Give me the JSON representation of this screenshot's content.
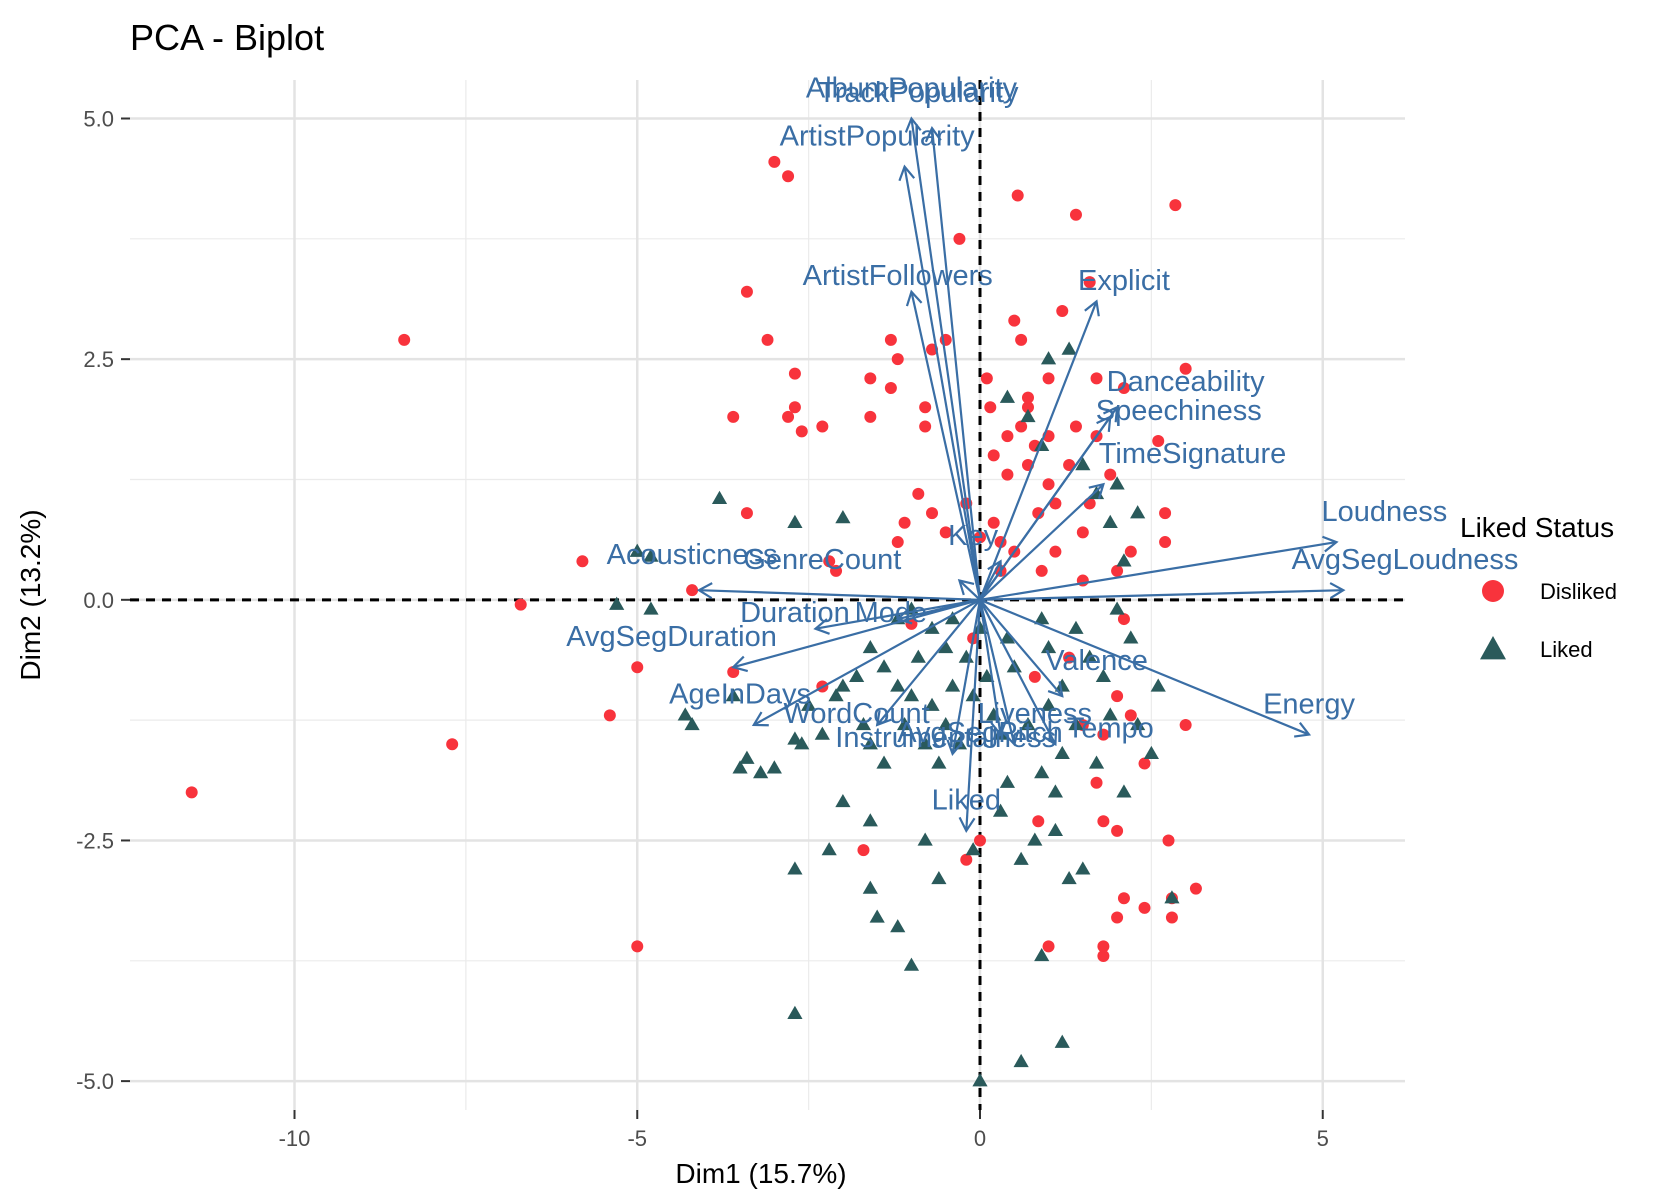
{
  "chart_data": {
    "type": "scatter",
    "title": "PCA - Biplot",
    "xlabel": "Dim1 (15.7%)",
    "ylabel": "Dim2 (13.2%)",
    "xlim": [
      -12.4,
      6.2
    ],
    "ylim": [
      -5.3,
      5.4
    ],
    "x_ticks": [
      -10,
      -5,
      0,
      5
    ],
    "x_tick_labels": [
      "-10",
      "-5",
      "0",
      "5"
    ],
    "y_ticks": [
      -5,
      -2.5,
      0,
      2.5,
      5
    ],
    "y_tick_labels": [
      "-5.0",
      "-2.5",
      "0.0",
      "2.5",
      "5.0"
    ],
    "grid": true,
    "legend": {
      "title": "Liked Status",
      "position": "right",
      "entries": [
        {
          "name": "Disliked",
          "shape": "circle",
          "color": "#F8333C"
        },
        {
          "name": "Liked",
          "shape": "triangle",
          "color": "#2A5A5B"
        }
      ]
    },
    "arrow_color": "#3A6EA5",
    "series": [
      {
        "name": "Disliked",
        "points": [
          [
            -11.5,
            -2.0
          ],
          [
            -8.4,
            2.7
          ],
          [
            -7.7,
            -1.5
          ],
          [
            -6.7,
            -0.05
          ],
          [
            -5.8,
            0.4
          ],
          [
            -5.0,
            -0.7
          ],
          [
            -5.0,
            -3.6
          ],
          [
            -5.4,
            -1.2
          ],
          [
            -4.2,
            0.1
          ],
          [
            -3.6,
            -0.75
          ],
          [
            -3.4,
            3.2
          ],
          [
            -3.6,
            1.9
          ],
          [
            -3.4,
            0.9
          ],
          [
            -3.1,
            2.7
          ],
          [
            -3.0,
            4.55
          ],
          [
            -2.8,
            4.4
          ],
          [
            -2.8,
            1.9
          ],
          [
            -2.7,
            2.0
          ],
          [
            -2.7,
            2.35
          ],
          [
            -2.6,
            1.75
          ],
          [
            -2.3,
            -0.9
          ],
          [
            -2.2,
            0.4
          ],
          [
            -2.3,
            1.8
          ],
          [
            -2.1,
            0.3
          ],
          [
            -1.7,
            -2.6
          ],
          [
            -1.6,
            1.9
          ],
          [
            -1.6,
            2.3
          ],
          [
            -1.3,
            2.7
          ],
          [
            -1.2,
            2.5
          ],
          [
            -1.2,
            0.6
          ],
          [
            -1.3,
            2.2
          ],
          [
            -1.1,
            0.8
          ],
          [
            -1.0,
            -0.25
          ],
          [
            -0.9,
            1.1
          ],
          [
            -0.8,
            2.0
          ],
          [
            -0.8,
            1.8
          ],
          [
            -0.7,
            0.9
          ],
          [
            -0.7,
            2.6
          ],
          [
            -0.5,
            2.7
          ],
          [
            -0.5,
            0.7
          ],
          [
            -0.3,
            3.75
          ],
          [
            -0.2,
            1.0
          ],
          [
            -0.2,
            -2.7
          ],
          [
            -0.1,
            -0.4
          ],
          [
            0.0,
            0.65
          ],
          [
            0.0,
            -2.5
          ],
          [
            0.1,
            2.3
          ],
          [
            0.15,
            2.0
          ],
          [
            0.2,
            0.8
          ],
          [
            0.2,
            1.5
          ],
          [
            0.3,
            0.3
          ],
          [
            0.3,
            0.6
          ],
          [
            0.4,
            1.7
          ],
          [
            0.4,
            1.3
          ],
          [
            0.5,
            2.9
          ],
          [
            0.5,
            0.5
          ],
          [
            0.55,
            4.2
          ],
          [
            0.6,
            2.7
          ],
          [
            0.6,
            1.8
          ],
          [
            0.7,
            2.0
          ],
          [
            0.7,
            1.4
          ],
          [
            0.8,
            1.6
          ],
          [
            0.85,
            0.9
          ],
          [
            0.85,
            -2.3
          ],
          [
            0.9,
            0.3
          ],
          [
            1.0,
            2.3
          ],
          [
            1.0,
            1.7
          ],
          [
            1.0,
            -3.6
          ],
          [
            1.1,
            0.5
          ],
          [
            1.1,
            1.0
          ],
          [
            1.2,
            3.0
          ],
          [
            1.3,
            1.4
          ],
          [
            1.4,
            4.0
          ],
          [
            1.4,
            1.8
          ],
          [
            1.5,
            0.7
          ],
          [
            1.5,
            -1.3
          ],
          [
            1.6,
            1.0
          ],
          [
            1.6,
            3.3
          ],
          [
            1.7,
            1.7
          ],
          [
            1.7,
            -1.9
          ],
          [
            1.8,
            -3.7
          ],
          [
            1.8,
            -3.6
          ],
          [
            1.8,
            -2.3
          ],
          [
            1.8,
            -1.4
          ],
          [
            1.9,
            1.3
          ],
          [
            2.0,
            -3.3
          ],
          [
            2.0,
            0.3
          ],
          [
            2.0,
            -1.0
          ],
          [
            2.0,
            -2.4
          ],
          [
            2.1,
            -0.2
          ],
          [
            2.1,
            2.2
          ],
          [
            2.1,
            -3.1
          ],
          [
            2.2,
            0.5
          ],
          [
            2.4,
            -1.7
          ],
          [
            2.4,
            -3.2
          ],
          [
            2.6,
            1.65
          ],
          [
            2.7,
            0.6
          ],
          [
            2.7,
            0.9
          ],
          [
            2.75,
            -2.5
          ],
          [
            2.8,
            -3.1
          ],
          [
            2.8,
            -3.3
          ],
          [
            2.85,
            4.1
          ],
          [
            3.0,
            2.4
          ],
          [
            3.0,
            -1.3
          ],
          [
            3.15,
            -3.0
          ],
          [
            1.0,
            1.2
          ],
          [
            1.5,
            0.2
          ],
          [
            2.2,
            -1.2
          ],
          [
            1.3,
            -0.6
          ],
          [
            0.8,
            -0.8
          ],
          [
            1.7,
            2.3
          ],
          [
            0.7,
            2.1
          ]
        ]
      },
      {
        "name": "Liked",
        "points": [
          [
            -5.3,
            -0.05
          ],
          [
            -5.0,
            0.5
          ],
          [
            -4.8,
            0.45
          ],
          [
            -4.8,
            -0.1
          ],
          [
            -4.3,
            -1.2
          ],
          [
            -4.2,
            -1.3
          ],
          [
            -3.8,
            1.05
          ],
          [
            -3.6,
            -1.0
          ],
          [
            -3.5,
            -1.75
          ],
          [
            -3.4,
            -1.65
          ],
          [
            -3.2,
            -1.8
          ],
          [
            -3.0,
            -1.75
          ],
          [
            -2.7,
            -1.45
          ],
          [
            -2.7,
            -2.8
          ],
          [
            -2.6,
            -1.5
          ],
          [
            -2.5,
            -1.1
          ],
          [
            -2.3,
            -1.4
          ],
          [
            -2.2,
            -2.6
          ],
          [
            -2.1,
            -1.0
          ],
          [
            -2.0,
            -0.9
          ],
          [
            -2.0,
            -2.1
          ],
          [
            -1.8,
            -0.8
          ],
          [
            -1.7,
            -1.3
          ],
          [
            -1.6,
            -1.5
          ],
          [
            -1.6,
            -2.3
          ],
          [
            -1.6,
            -3.0
          ],
          [
            -1.4,
            -0.7
          ],
          [
            -1.4,
            -1.7
          ],
          [
            -1.2,
            -0.2
          ],
          [
            -1.2,
            -0.9
          ],
          [
            -1.1,
            -1.3
          ],
          [
            -1.0,
            -1.0
          ],
          [
            -1.0,
            -0.1
          ],
          [
            -0.9,
            -0.6
          ],
          [
            -0.8,
            -1.5
          ],
          [
            -0.8,
            -2.5
          ],
          [
            -0.7,
            -0.3
          ],
          [
            -0.7,
            -1.1
          ],
          [
            -0.6,
            -1.7
          ],
          [
            -0.5,
            -0.5
          ],
          [
            -0.5,
            -1.3
          ],
          [
            -0.4,
            -0.2
          ],
          [
            -0.4,
            -0.9
          ],
          [
            -0.3,
            -1.5
          ],
          [
            -0.2,
            -0.6
          ],
          [
            -0.1,
            -1.0
          ],
          [
            0.0,
            -0.3
          ],
          [
            0.0,
            -5.0
          ],
          [
            0.1,
            -0.8
          ],
          [
            0.2,
            -1.2
          ],
          [
            0.3,
            -1.4
          ],
          [
            0.4,
            -0.4
          ],
          [
            0.4,
            -1.9
          ],
          [
            0.5,
            -0.7
          ],
          [
            0.6,
            -2.7
          ],
          [
            0.6,
            -4.8
          ],
          [
            0.7,
            -1.3
          ],
          [
            0.8,
            -2.5
          ],
          [
            0.9,
            -0.2
          ],
          [
            0.9,
            -1.8
          ],
          [
            1.0,
            -1.1
          ],
          [
            1.0,
            -0.5
          ],
          [
            1.1,
            -2.4
          ],
          [
            1.2,
            -0.9
          ],
          [
            1.2,
            -1.6
          ],
          [
            1.2,
            -4.6
          ],
          [
            1.3,
            -2.9
          ],
          [
            1.4,
            -0.3
          ],
          [
            1.4,
            -1.3
          ],
          [
            1.5,
            -2.8
          ],
          [
            1.6,
            -0.6
          ],
          [
            1.7,
            -1.7
          ],
          [
            1.8,
            -0.8
          ],
          [
            1.9,
            -1.2
          ],
          [
            2.0,
            -0.1
          ],
          [
            2.1,
            -2.0
          ],
          [
            2.2,
            -0.4
          ],
          [
            2.3,
            -1.3
          ],
          [
            2.5,
            -1.6
          ],
          [
            2.6,
            -0.9
          ],
          [
            2.8,
            -3.1
          ],
          [
            0.4,
            2.1
          ],
          [
            0.7,
            1.9
          ],
          [
            0.9,
            1.6
          ],
          [
            1.0,
            2.5
          ],
          [
            1.3,
            2.6
          ],
          [
            1.5,
            1.4
          ],
          [
            1.7,
            1.1
          ],
          [
            1.9,
            0.8
          ],
          [
            2.0,
            1.2
          ],
          [
            2.1,
            0.4
          ],
          [
            2.3,
            0.9
          ],
          [
            -2.7,
            0.8
          ],
          [
            -2.0,
            0.85
          ],
          [
            -1.6,
            -0.5
          ],
          [
            -1.5,
            -3.3
          ],
          [
            -1.2,
            -3.4
          ],
          [
            -1.0,
            -3.8
          ],
          [
            -0.6,
            -2.9
          ],
          [
            0.9,
            -3.7
          ],
          [
            -0.1,
            -2.6
          ],
          [
            1.1,
            -2.0
          ],
          [
            0.3,
            -2.2
          ],
          [
            -2.7,
            -4.3
          ]
        ]
      }
    ],
    "variables": [
      {
        "name": "AlbumPopularity",
        "label": "AlbumPopularity",
        "x": -1.0,
        "y": 5.0,
        "label_x": -1.0,
        "label_y": 5.3
      },
      {
        "name": "TrackPopularity",
        "label": "TrackPopularity",
        "x": -0.7,
        "y": 4.9,
        "label_x": -0.9,
        "label_y": 5.25
      },
      {
        "name": "ArtistPopularity",
        "label": "ArtistPopularity",
        "x": -1.1,
        "y": 4.5,
        "label_x": -1.5,
        "label_y": 4.8
      },
      {
        "name": "ArtistFollowers",
        "label": "ArtistFollowers",
        "x": -1.0,
        "y": 3.2,
        "label_x": -1.2,
        "label_y": 3.35
      },
      {
        "name": "Explicit",
        "label": "Explicit",
        "x": 1.7,
        "y": 3.1,
        "label_x": 2.1,
        "label_y": 3.3
      },
      {
        "name": "Danceability",
        "label": "Danceability",
        "x": 2.0,
        "y": 2.0,
        "label_x": 3.0,
        "label_y": 2.25
      },
      {
        "name": "Speechiness",
        "label": "Speechiness",
        "x": 1.9,
        "y": 1.9,
        "label_x": 2.9,
        "label_y": 1.95
      },
      {
        "name": "TimeSignature",
        "label": "TimeSignature",
        "x": 1.8,
        "y": 1.2,
        "label_x": 3.1,
        "label_y": 1.5
      },
      {
        "name": "Loudness",
        "label": "Loudness",
        "x": 5.2,
        "y": 0.6,
        "label_x": 5.9,
        "label_y": 0.9
      },
      {
        "name": "AvgSegLoudness",
        "label": "AvgSegLoudness",
        "x": 5.3,
        "y": 0.1,
        "label_x": 6.2,
        "label_y": 0.4
      },
      {
        "name": "Key",
        "label": "Key",
        "x": 0.3,
        "y": 0.4,
        "label_x": -0.1,
        "label_y": 0.65
      },
      {
        "name": "GenreCount",
        "label": "GenreCount",
        "x": -0.3,
        "y": 0.2,
        "label_x": -2.3,
        "label_y": 0.4
      },
      {
        "name": "Acousticness",
        "label": "Acousticness",
        "x": -4.1,
        "y": 0.1,
        "label_x": -4.2,
        "label_y": 0.45
      },
      {
        "name": "Duration",
        "label": "Duration",
        "x": -2.4,
        "y": -0.3,
        "label_x": -2.7,
        "label_y": -0.15
      },
      {
        "name": "Mode",
        "label": "Mode",
        "x": -1.2,
        "y": -0.2,
        "label_x": -1.3,
        "label_y": -0.15
      },
      {
        "name": "AvgSegDuration",
        "label": "AvgSegDuration",
        "x": -3.6,
        "y": -0.7,
        "label_x": -4.5,
        "label_y": -0.4
      },
      {
        "name": "AgeInDays",
        "label": "AgeInDays",
        "x": -3.3,
        "y": -1.3,
        "label_x": -3.5,
        "label_y": -1.0
      },
      {
        "name": "Valence",
        "label": "Valence",
        "x": 1.2,
        "y": -1.0,
        "label_x": 1.7,
        "label_y": -0.65
      },
      {
        "name": "Energy",
        "label": "Energy",
        "x": 4.8,
        "y": -1.4,
        "label_x": 4.8,
        "label_y": -1.1
      },
      {
        "name": "WordCount",
        "label": "WordCount",
        "x": -1.5,
        "y": -1.3,
        "label_x": -1.8,
        "label_y": -1.2
      },
      {
        "name": "Liveness",
        "label": "Liveness",
        "x": 0.3,
        "y": -1.4,
        "label_x": 0.8,
        "label_y": -1.2
      },
      {
        "name": "Tempo",
        "label": "Tempo",
        "x": 1.1,
        "y": -1.5,
        "label_x": 1.9,
        "label_y": -1.35
      },
      {
        "name": "Instrumentalness",
        "label": "Instrumentalness",
        "x": -0.4,
        "y": -1.6,
        "label_x": -0.5,
        "label_y": -1.45
      },
      {
        "name": "AvgSegPitch",
        "label": "AvgSegPitch",
        "x": 0.5,
        "y": -1.5,
        "label_x": 0.0,
        "label_y": -1.4
      },
      {
        "name": "Liked",
        "label": "Liked",
        "x": -0.2,
        "y": -2.4,
        "label_x": -0.2,
        "label_y": -2.1
      }
    ]
  }
}
